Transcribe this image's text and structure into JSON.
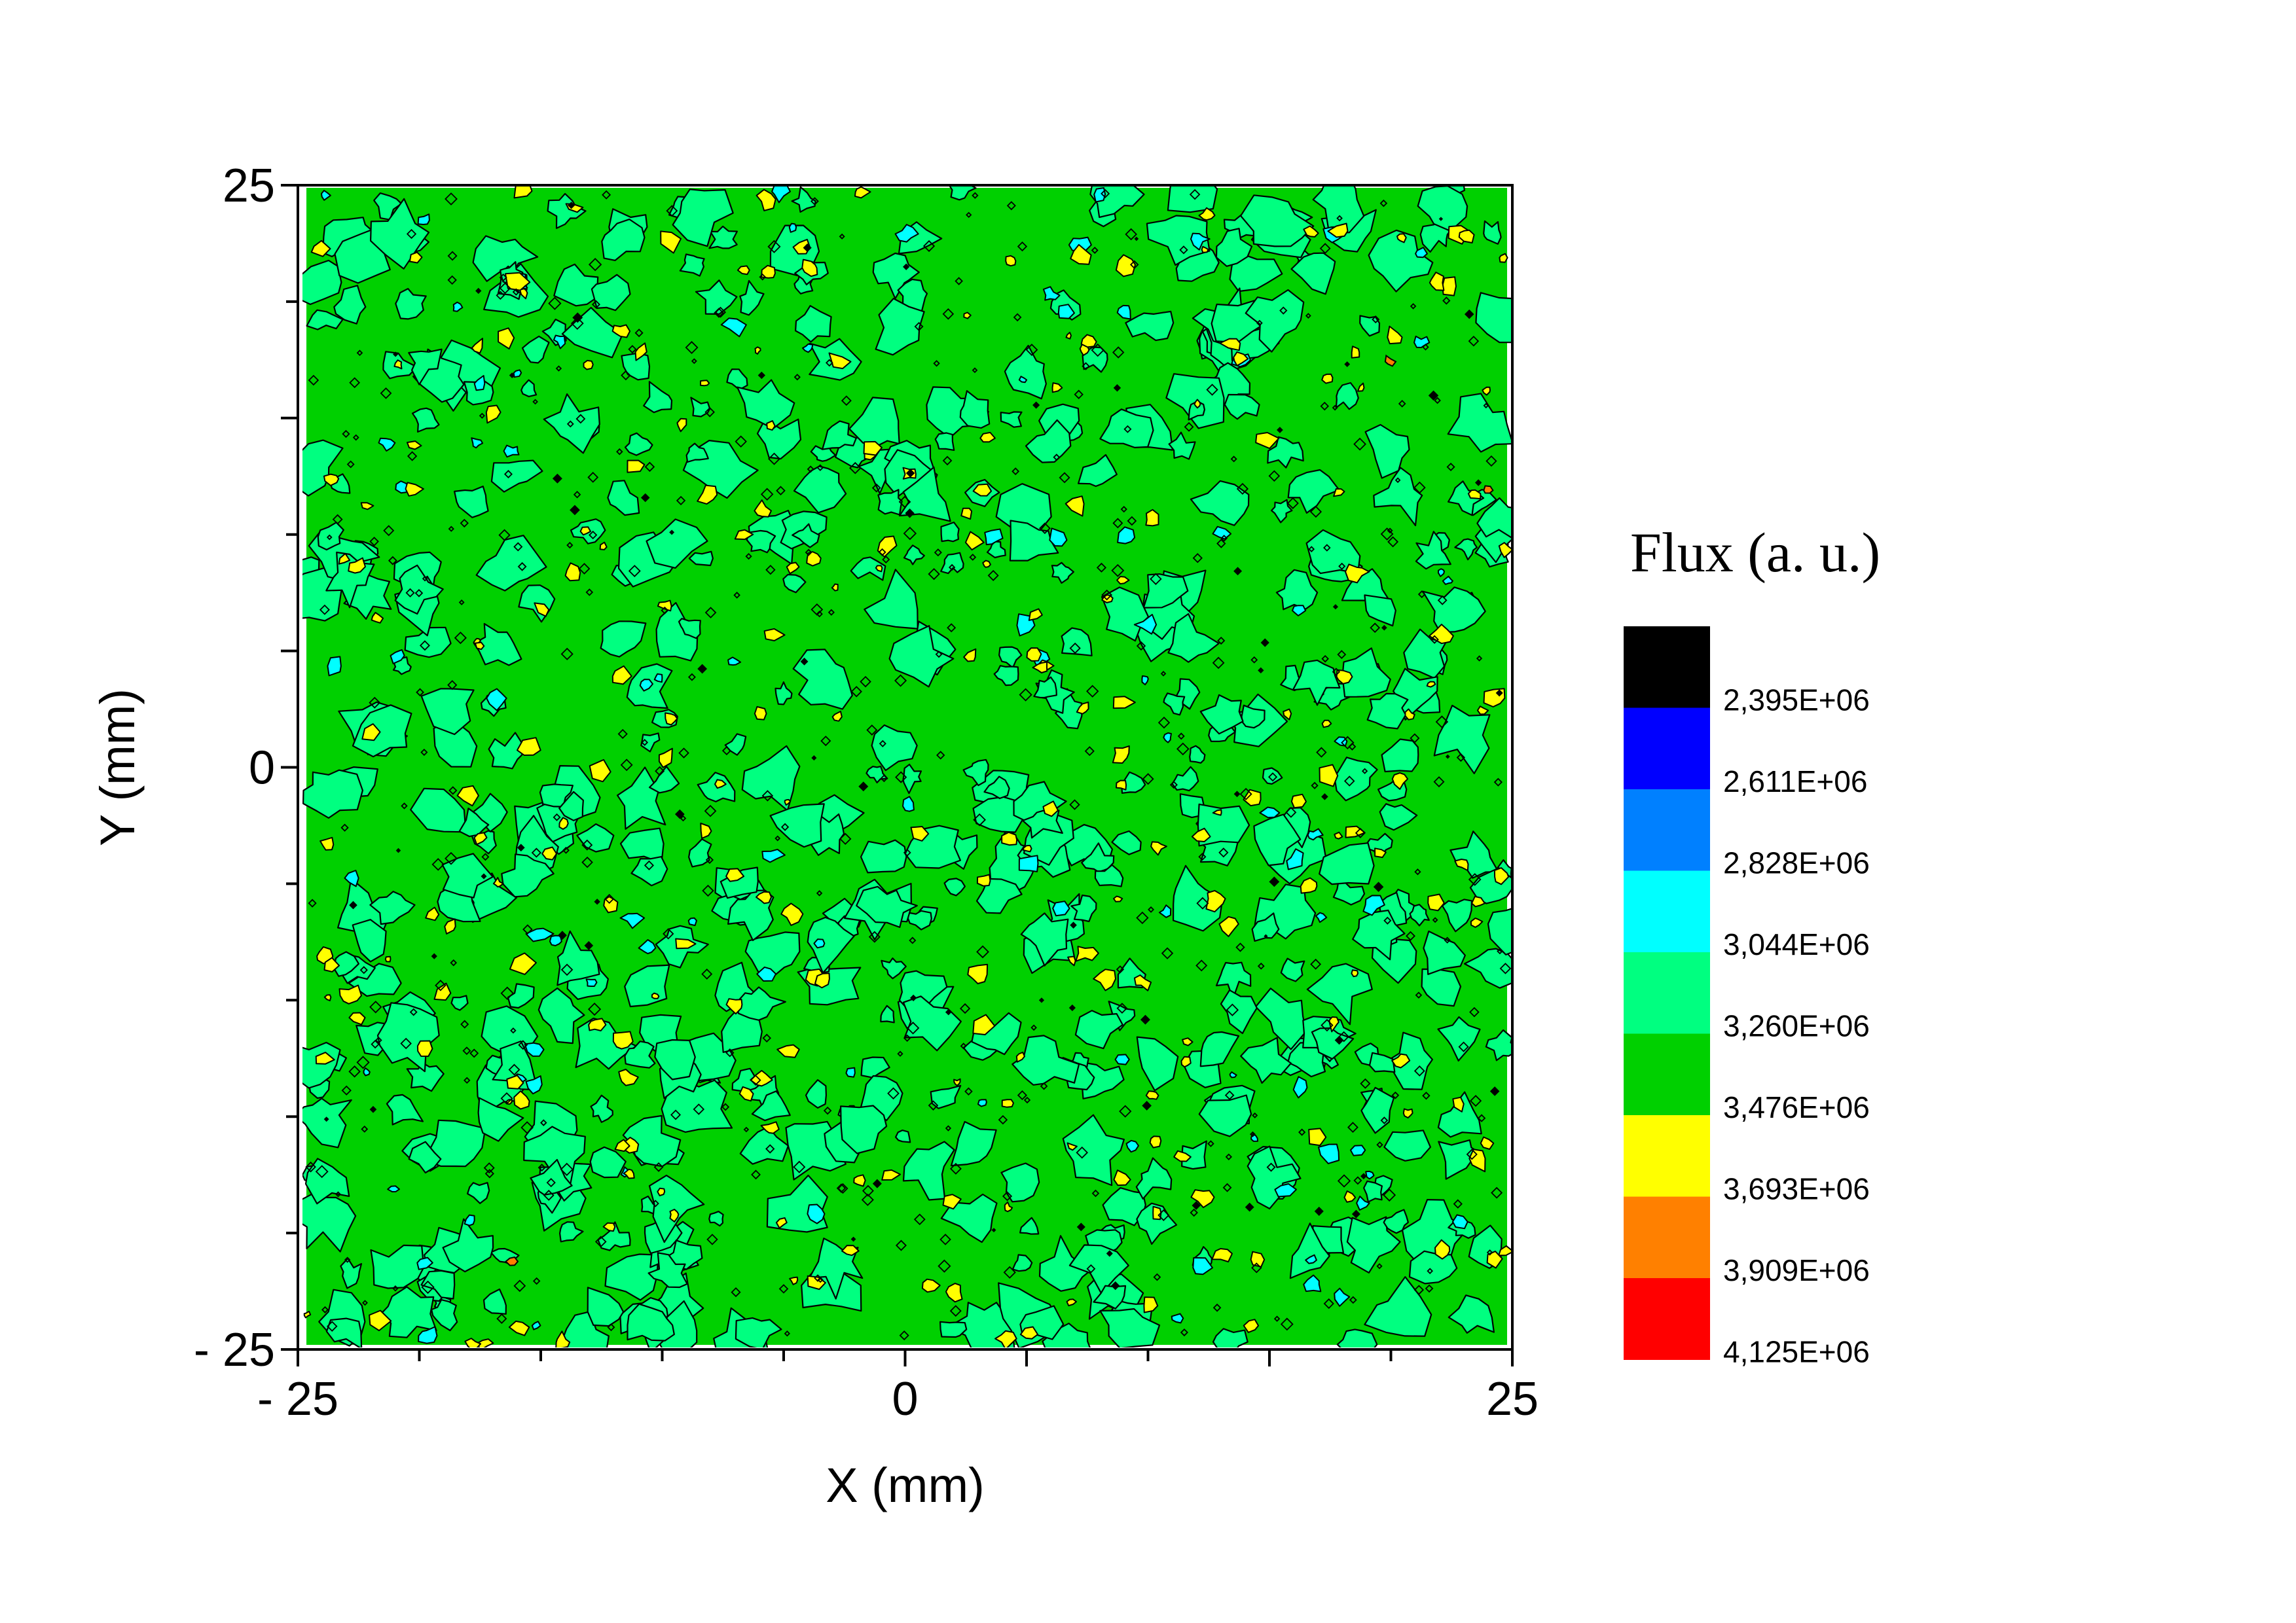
{
  "chart_data": {
    "type": "heatmap",
    "title": "",
    "xlabel": "X (mm)",
    "ylabel": "Y (mm)",
    "xlim": [
      -25,
      25
    ],
    "ylim": [
      -25,
      25
    ],
    "x_ticks": [
      {
        "value": -25,
        "label": "- 25"
      },
      {
        "value": 0,
        "label": "0"
      },
      {
        "value": 25,
        "label": "25"
      }
    ],
    "y_ticks": [
      {
        "value": 25,
        "label": "25"
      },
      {
        "value": 0,
        "label": "0"
      },
      {
        "value": -25,
        "label": "- 25"
      }
    ],
    "colorbar": {
      "title": "Flux (a. u.)",
      "levels": [
        "2,395E+06",
        "2,611E+06",
        "2,828E+06",
        "3,044E+06",
        "3,260E+06",
        "3,476E+06",
        "3,693E+06",
        "3,909E+06",
        "4,125E+06"
      ],
      "colors": [
        "#000000",
        "#0000ff",
        "#0080ff",
        "#00ffff",
        "#00ff80",
        "#00d000",
        "#ffff00",
        "#ff8000",
        "#ff0000"
      ]
    },
    "distribution": "noisy uniform field dominated by 3,044E+06–3,476E+06 levels with scattered yellow/cyan speckles and rare black/orange spots",
    "grid": false
  }
}
